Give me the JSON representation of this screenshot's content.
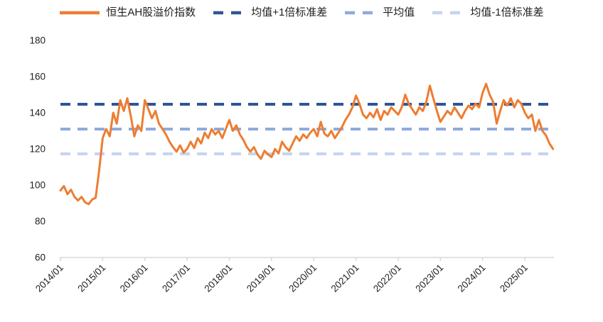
{
  "legend": {
    "items": [
      {
        "label": "恒生AH股溢价指数",
        "color": "#ED7D31",
        "style": "solid"
      },
      {
        "label": "均值+1倍标准差",
        "color": "#2E5596",
        "style": "dashed"
      },
      {
        "label": "平均值",
        "color": "#8FAADC",
        "style": "dashed"
      },
      {
        "label": "均值-1倍标准差",
        "color": "#C3D4F0",
        "style": "dashed"
      }
    ]
  },
  "chart_data": {
    "type": "line",
    "title": "",
    "xlabel": "",
    "ylabel": "",
    "ylim": [
      60,
      180
    ],
    "y_ticks": [
      60,
      80,
      100,
      120,
      140,
      160,
      180
    ],
    "x_tick_labels": [
      "2014/01",
      "2015/01",
      "2016/01",
      "2017/01",
      "2018/01",
      "2019/01",
      "2020/01",
      "2021/01",
      "2022/01",
      "2023/01",
      "2024/01",
      "2025/01"
    ],
    "x_start_year": 2014,
    "x_interval": "monthly",
    "grid": "off",
    "legend_position": "top",
    "series": [
      {
        "name": "恒生AH股溢价指数",
        "color": "#ED7D31",
        "style": "solid",
        "values": [
          97,
          99.5,
          95,
          97.5,
          93.5,
          91.5,
          93.5,
          90.5,
          89.5,
          92,
          93,
          108,
          126,
          131,
          127,
          140,
          134,
          147,
          141,
          148,
          138,
          127,
          133,
          130,
          147,
          142,
          137,
          141,
          134,
          131,
          128,
          124,
          121,
          118.5,
          122,
          118,
          120,
          124,
          120.5,
          126,
          123,
          129,
          126,
          131,
          128,
          130,
          126,
          131,
          136,
          130,
          133,
          128,
          125,
          121,
          118.5,
          121,
          117,
          114.5,
          119,
          117,
          115.5,
          120,
          117.5,
          124,
          121,
          119,
          123,
          127,
          124.5,
          128,
          126,
          129,
          131,
          127,
          135,
          128.5,
          127,
          130,
          126,
          129,
          132,
          136,
          139,
          143,
          149.5,
          145,
          139,
          137,
          140,
          137.5,
          142,
          136,
          141,
          139,
          143,
          141,
          139,
          143,
          150,
          145,
          142,
          139,
          143,
          141,
          146,
          155,
          148,
          141,
          135,
          138,
          141,
          139,
          143,
          140,
          137,
          141,
          144,
          142,
          145,
          143,
          151,
          156,
          150,
          146,
          134,
          141,
          147,
          144,
          148,
          143,
          147,
          145,
          140,
          137,
          139,
          130,
          136,
          130,
          127.5,
          123,
          120
        ]
      },
      {
        "name": "均值+1倍标准差",
        "color": "#2E5596",
        "style": "dashed",
        "value": 144.7
      },
      {
        "name": "平均值",
        "color": "#8FAADC",
        "style": "dashed",
        "value": 131.0
      },
      {
        "name": "均值-1倍标准差",
        "color": "#C3D4F0",
        "style": "dashed",
        "value": 117.3
      }
    ],
    "axis_color": "#D9D9D9",
    "text_color": "#1f1f1f"
  }
}
